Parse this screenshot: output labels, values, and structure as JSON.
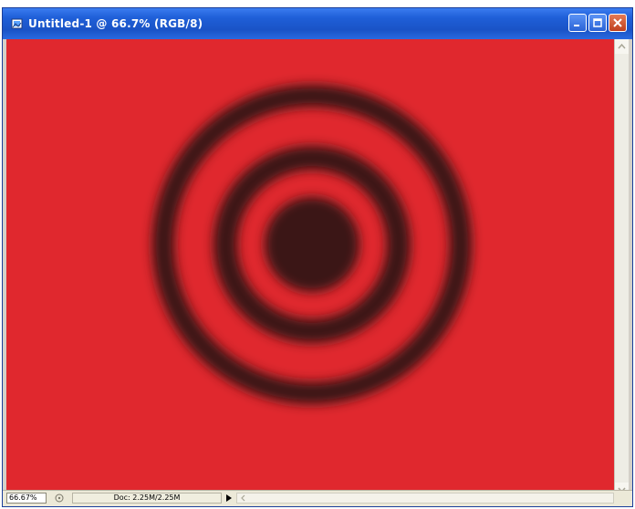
{
  "window": {
    "title": "Untitled-1 @ 66.7% (RGB/8)",
    "icons": {
      "app": "photoshop-document-icon",
      "minimize": "minimize-icon",
      "maximize": "maximize-icon",
      "close": "close-icon"
    }
  },
  "canvas": {
    "background_color": "#e0282e",
    "ring_color": "#3a1418"
  },
  "statusbar": {
    "zoom": "66.67%",
    "doc_info": "Doc: 2.25M/2.25M"
  }
}
